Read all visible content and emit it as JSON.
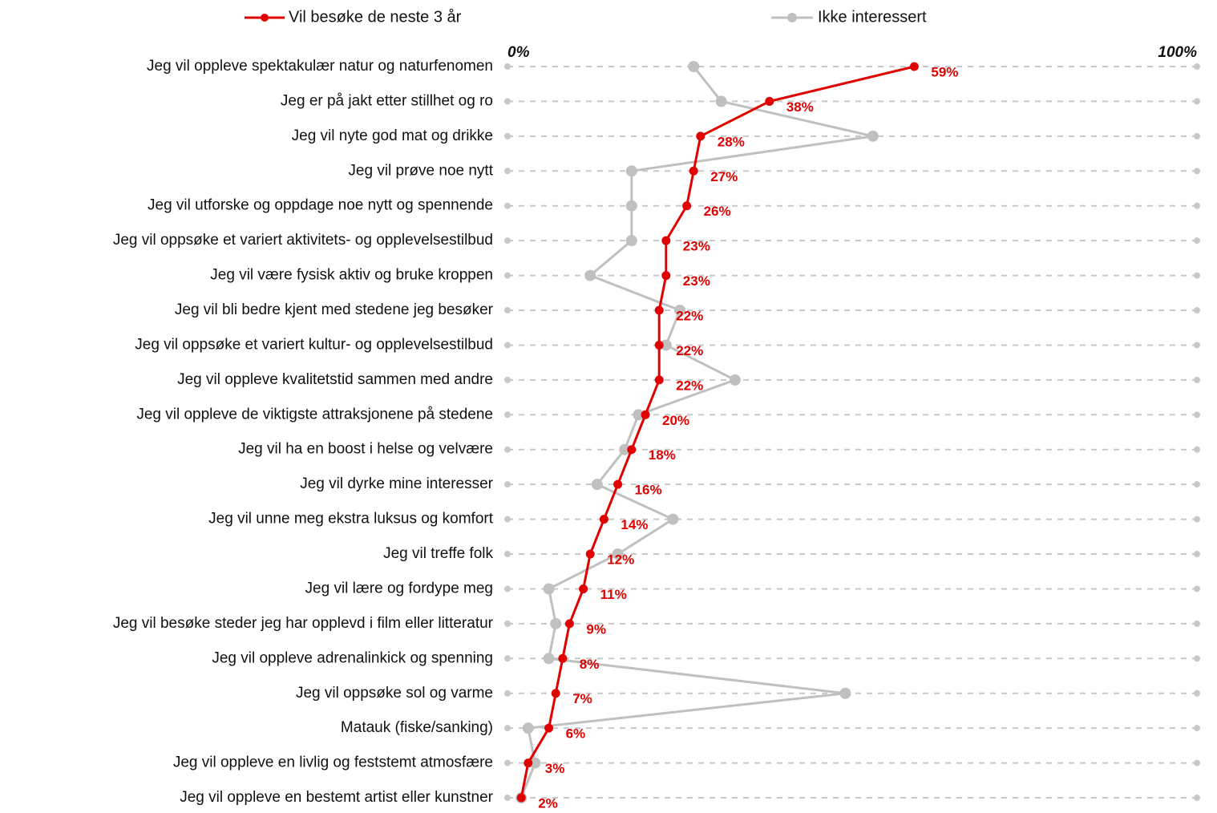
{
  "chart_data": {
    "type": "dot-line",
    "categories": [
      "Jeg vil oppleve spektakulær natur og naturfenomen",
      "Jeg er på jakt etter stillhet og ro",
      "Jeg vil nyte god mat og drikke",
      "Jeg vil prøve noe nytt",
      "Jeg vil utforske og oppdage noe nytt og spennende",
      "Jeg vil oppsøke et variert aktivitets- og opplevelsestilbud",
      "Jeg vil være fysisk aktiv og bruke kroppen",
      "Jeg vil bli bedre kjent med stedene jeg besøker",
      "Jeg vil oppsøke et variert kultur- og opplevelsestilbud",
      "Jeg vil oppleve kvalitetstid sammen med andre",
      "Jeg vil oppleve de viktigste attraksjonene på stedene",
      "Jeg vil ha en boost i helse og velvære",
      "Jeg vil dyrke mine interesser",
      "Jeg vil unne meg ekstra luksus og komfort",
      "Jeg vil treffe folk",
      "Jeg vil lære og fordype meg",
      "Jeg vil besøke steder jeg har opplevd i film eller litteratur",
      "Jeg vil oppleve adrenalinkick og spenning",
      "Jeg vil oppsøke sol og varme",
      "Matauk (fiske/sanking)",
      "Jeg vil oppleve en livlig og feststemt atmosfære",
      "Jeg vil oppleve en bestemt artist eller kunstner"
    ],
    "series": [
      {
        "name": "Vil besøke de neste 3 år",
        "color": "#e00000",
        "values": [
          59,
          38,
          28,
          27,
          26,
          23,
          23,
          22,
          22,
          22,
          20,
          18,
          16,
          14,
          12,
          11,
          9,
          8,
          7,
          6,
          3,
          2
        ],
        "value_labels": [
          "59%",
          "38%",
          "28%",
          "27%",
          "26%",
          "23%",
          "23%",
          "22%",
          "22%",
          "22%",
          "20%",
          "18%",
          "16%",
          "14%",
          "12%",
          "11%",
          "9%",
          "8%",
          "7%",
          "6%",
          "3%",
          "2%"
        ]
      },
      {
        "name": "Ikke interessert",
        "color": "#c0c0c0",
        "values": [
          27,
          31,
          53,
          18,
          18,
          18,
          12,
          25,
          23,
          33,
          19,
          17,
          13,
          24,
          16,
          6,
          7,
          6,
          49,
          3,
          4,
          2
        ]
      }
    ],
    "xlim": [
      0,
      100
    ],
    "xticks": [
      {
        "value": 0,
        "label": "0%"
      },
      {
        "value": 100,
        "label": "100%"
      }
    ]
  }
}
